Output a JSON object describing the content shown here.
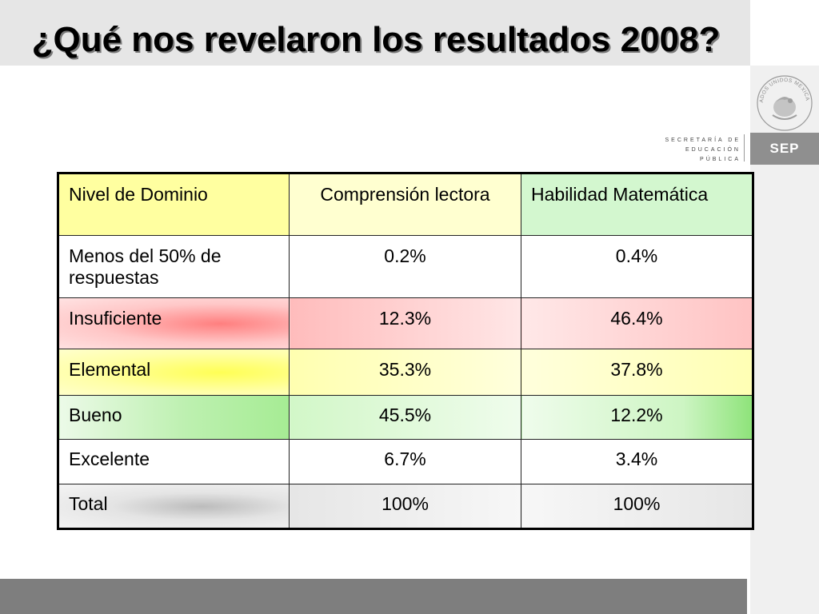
{
  "slide": {
    "title": "¿Qué nos revelaron los resultados 2008?"
  },
  "branding": {
    "ministry_line1": "SECRETARÍA DE",
    "ministry_line2": "EDUCACIÓN PÚBLICA",
    "acronym": "SEP",
    "seal_text": "ESTADOS UNIDOS MEXICANOS"
  },
  "table": {
    "headers": [
      "Nivel de Dominio",
      "Comprensión lectora",
      "Habilidad Matemática"
    ],
    "rows": [
      {
        "level": "Menos del 50% de respuestas",
        "lectora": "0.2%",
        "matematica": "0.4%"
      },
      {
        "level": "Insuficiente",
        "lectora": "12.3%",
        "matematica": "46.4%"
      },
      {
        "level": "Elemental",
        "lectora": "35.3%",
        "matematica": "37.8%"
      },
      {
        "level": "Bueno",
        "lectora": "45.5%",
        "matematica": "12.2%"
      },
      {
        "level": "Excelente",
        "lectora": "6.7%",
        "matematica": "3.4%"
      },
      {
        "level": "Total",
        "lectora": "100%",
        "matematica": "100%"
      }
    ]
  },
  "colors": {
    "insuficiente": "#ff7f7f",
    "elemental": "#ffff55",
    "bueno": "#a6ec94",
    "bottom_bar": "#7e7e7e"
  }
}
